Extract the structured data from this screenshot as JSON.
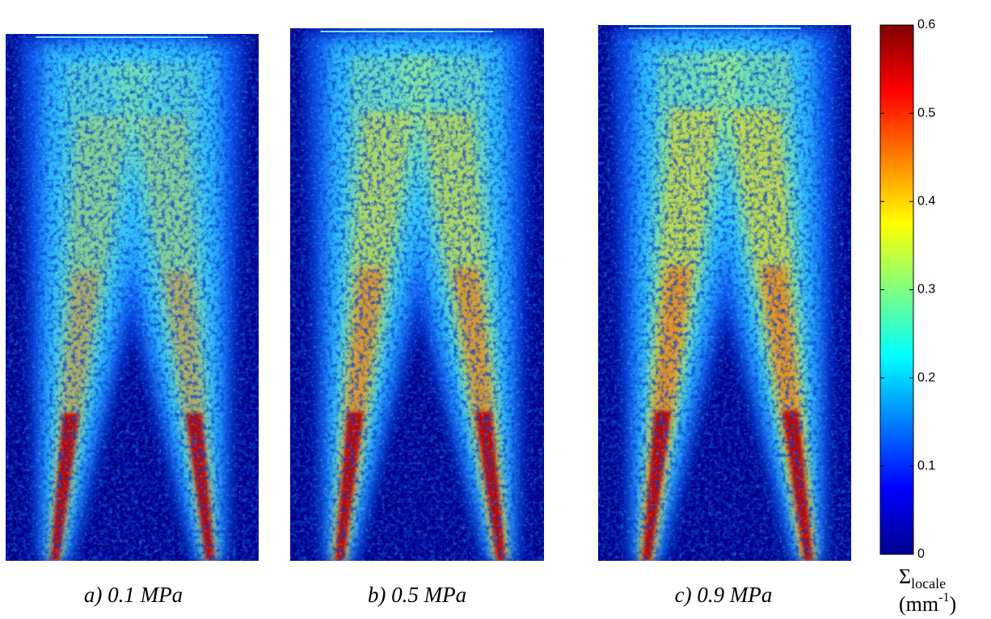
{
  "chart_data": {
    "type": "heatmap-image",
    "panels": [
      {
        "caption": "a) 0.1 MPa"
      },
      {
        "caption": "b) 0.5 MPa"
      },
      {
        "caption": "c) 0.9 MPa"
      }
    ],
    "colorbar": {
      "colormap": "jet",
      "ylim": [
        0,
        0.6
      ],
      "yticks": [
        0,
        0.1,
        0.2,
        0.3,
        0.4,
        0.5,
        0.6
      ],
      "label": {
        "symbol": "Σ",
        "subscript": "locale",
        "unit_open": "(mm",
        "superscript": "-1",
        "unit_close": ")"
      }
    }
  }
}
